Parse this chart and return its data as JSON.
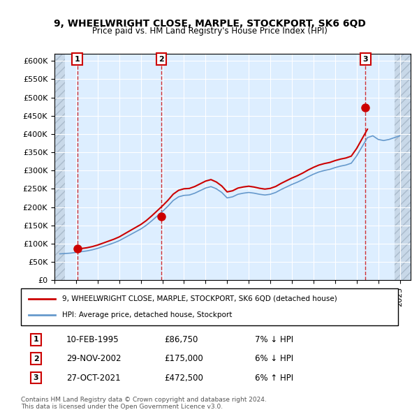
{
  "title": "9, WHEELWRIGHT CLOSE, MARPLE, STOCKPORT, SK6 6QD",
  "subtitle": "Price paid vs. HM Land Registry's House Price Index (HPI)",
  "ylim": [
    0,
    620000
  ],
  "yticks": [
    0,
    50000,
    100000,
    150000,
    200000,
    250000,
    300000,
    350000,
    400000,
    450000,
    500000,
    550000,
    600000
  ],
  "xlim_start": 1993.0,
  "xlim_end": 2026.0,
  "sales": [
    {
      "year": 1995.11,
      "price": 86750,
      "label": "1"
    },
    {
      "year": 2002.91,
      "price": 175000,
      "label": "2"
    },
    {
      "year": 2021.82,
      "price": 472500,
      "label": "3"
    }
  ],
  "sale_dates": [
    "10-FEB-1995",
    "29-NOV-2002",
    "27-OCT-2021"
  ],
  "sale_prices_str": [
    "£86,750",
    "£175,000",
    "£472,500"
  ],
  "sale_hpi_str": [
    "7% ↓ HPI",
    "6% ↓ HPI",
    "6% ↑ HPI"
  ],
  "legend_line1": "9, WHEELWRIGHT CLOSE, MARPLE, STOCKPORT, SK6 6QD (detached house)",
  "legend_line2": "HPI: Average price, detached house, Stockport",
  "footer1": "Contains HM Land Registry data © Crown copyright and database right 2024.",
  "footer2": "This data is licensed under the Open Government Licence v3.0.",
  "line_color_red": "#cc0000",
  "line_color_blue": "#6699cc",
  "bg_hatched": "#e8eef4",
  "bg_plain": "#ddeeff",
  "sale_marker_color": "#cc0000",
  "dashed_line_color": "#cc0000"
}
